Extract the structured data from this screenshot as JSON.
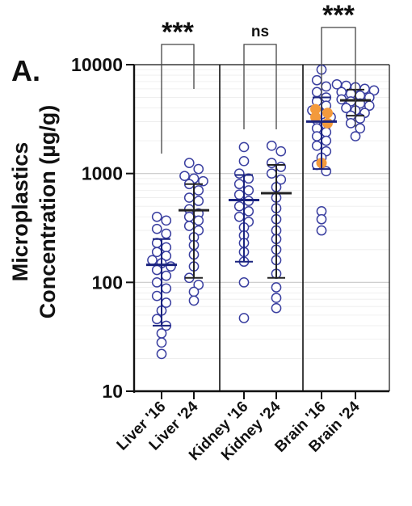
{
  "chart_data": {
    "type": "scatter",
    "panel_label": "A.",
    "ylabel_line1": "Microplastics",
    "ylabel_line2": "Concentration (µg/g)",
    "yscale": "log",
    "ylim": [
      10,
      10000
    ],
    "yticks": [
      10,
      100,
      1000,
      10000
    ],
    "ytick_labels": [
      "10",
      "100",
      "1000",
      "10000"
    ],
    "grid": true,
    "categories": [
      "Liver '16",
      "Liver '24",
      "Kidney '16",
      "Kidney '24",
      "Brain '16",
      "Brain '24"
    ],
    "groups": [
      {
        "category": "Liver '16",
        "color": "#1a237e",
        "mean": 145,
        "sd_low": 40,
        "sd_high": 250,
        "points": [
          400,
          370,
          310,
          280,
          230,
          210,
          190,
          175,
          160,
          150,
          140,
          130,
          115,
          100,
          88,
          75,
          65,
          55,
          46,
          40,
          34,
          28,
          22
        ],
        "highlight_points": []
      },
      {
        "category": "Liver '24",
        "color": "#222222",
        "mean": 460,
        "sd_low": 110,
        "sd_high": 800,
        "points": [
          1250,
          1100,
          950,
          900,
          850,
          800,
          700,
          600,
          560,
          470,
          430,
          400,
          370,
          330,
          300,
          260,
          220,
          180,
          140,
          110,
          95,
          82,
          68
        ],
        "highlight_points": []
      },
      {
        "category": "Kidney '16",
        "color": "#1a237e",
        "mean": 570,
        "sd_low": 155,
        "sd_high": 970,
        "points": [
          1750,
          1300,
          1000,
          900,
          800,
          700,
          640,
          560,
          500,
          450,
          400,
          360,
          320,
          270,
          230,
          190,
          155,
          100,
          47
        ],
        "highlight_points": []
      },
      {
        "category": "Kidney '24",
        "color": "#222222",
        "mean": 660,
        "sd_low": 110,
        "sd_high": 1200,
        "points": [
          1800,
          1600,
          1250,
          1150,
          1000,
          880,
          750,
          600,
          480,
          380,
          300,
          250,
          200,
          160,
          120,
          90,
          72,
          58
        ],
        "highlight_points": []
      },
      {
        "category": "Brain '16",
        "color": "#1a237e",
        "mean": 3000,
        "sd_low": 1100,
        "sd_high": 5000,
        "points": [
          9000,
          7200,
          6300,
          5600,
          5000,
          4600,
          4200,
          3800,
          3500,
          3300,
          3100,
          2800,
          2600,
          2400,
          2200,
          2000,
          1800,
          1600,
          1400,
          1200,
          1050,
          450,
          380,
          300
        ],
        "highlight_points": [
          3900,
          3600,
          3300,
          2900,
          1250
        ]
      },
      {
        "category": "Brain '24",
        "color": "#222222",
        "mean": 4700,
        "sd_low": 3400,
        "sd_high": 5900,
        "points": [
          6600,
          6400,
          6200,
          6000,
          5800,
          5600,
          5400,
          5200,
          5000,
          4800,
          4600,
          4400,
          4200,
          4000,
          3800,
          3600,
          3400,
          3200,
          2900,
          2600,
          2200
        ],
        "highlight_points": []
      }
    ],
    "comparisons": [
      {
        "label": "***",
        "from": "Liver '16",
        "to": "Liver '24"
      },
      {
        "label": "ns",
        "from": "Kidney '16",
        "to": "Kidney '24"
      },
      {
        "label": "***",
        "from": "Brain '16",
        "to": "Brain '24"
      }
    ],
    "colors": {
      "marker": "#3a3fa0",
      "highlight": "#f39a3c",
      "sd_bar_16": "#1a237e",
      "sd_bar_24": "#222222",
      "axis": "#111111",
      "grid": "#d9d9d9"
    }
  }
}
